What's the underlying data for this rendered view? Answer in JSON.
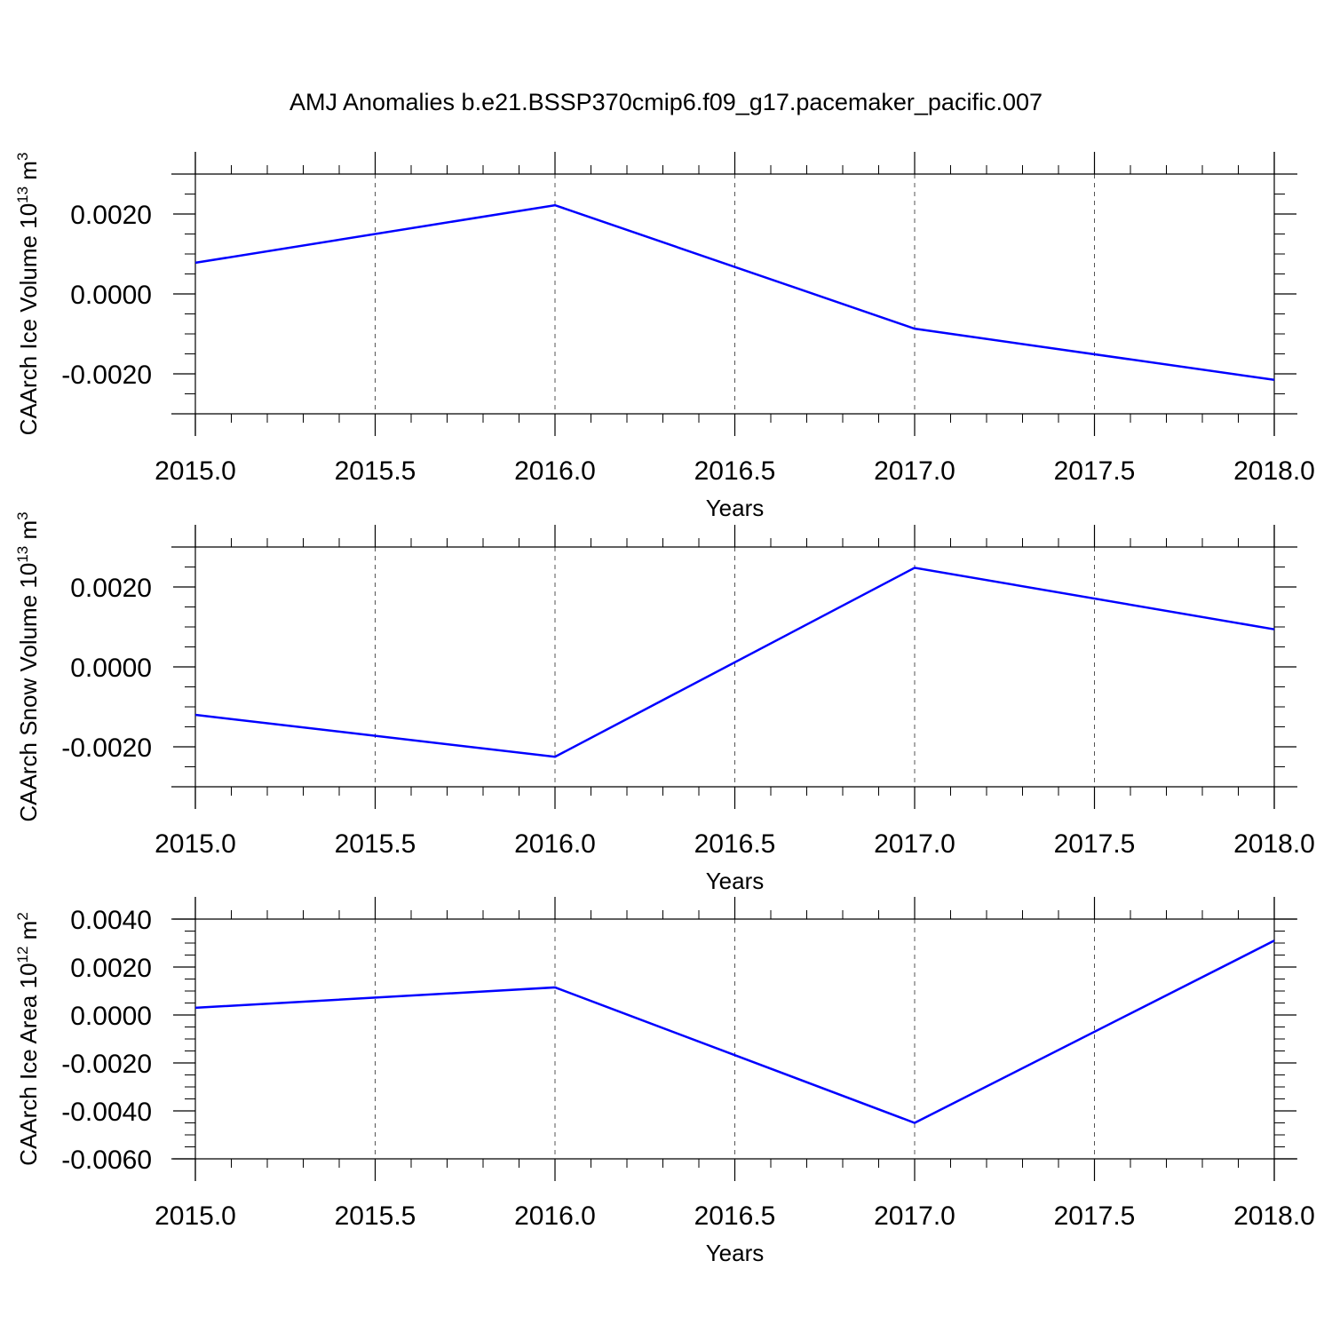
{
  "title": "AMJ Anomalies b.e21.BSSP370cmip6.f09_g17.pacemaker_pacific.007",
  "colors": {
    "line": "#0000ff",
    "axis": "#000000",
    "grid": "#555555",
    "background": "#ffffff"
  },
  "chart_data": [
    {
      "type": "line",
      "ylabel": {
        "text": "CAArch Ice Volume 10",
        "exp": "13",
        "unit": " m",
        "unit_exp": "3"
      },
      "xlabel": "Years",
      "x": [
        2015,
        2016,
        2017,
        2018
      ],
      "series": [
        {
          "values": [
            0.00078,
            0.00222,
            -0.00087,
            -0.00215
          ]
        }
      ],
      "xlim": [
        2015,
        2018
      ],
      "ylim": [
        -0.003,
        0.003
      ],
      "x_ticks": [
        "2015.0",
        "2015.5",
        "2016.0",
        "2016.5",
        "2017.0",
        "2017.5",
        "2018.0"
      ],
      "y_ticks": [
        {
          "value": 0.002,
          "label": "0.0020"
        },
        {
          "value": 0.0,
          "label": "0.0000"
        },
        {
          "value": -0.002,
          "label": "-0.0020"
        }
      ],
      "y_minor_step": 0.0005,
      "grid": "vertical dashed"
    },
    {
      "type": "line",
      "ylabel": {
        "text": "CAArch Snow Volume 10",
        "exp": "13",
        "unit": " m",
        "unit_exp": "3"
      },
      "xlabel": "Years",
      "x": [
        2015,
        2016,
        2017,
        2018
      ],
      "series": [
        {
          "values": [
            -0.0012,
            -0.00225,
            0.00248,
            0.00094
          ]
        }
      ],
      "xlim": [
        2015,
        2018
      ],
      "ylim": [
        -0.003,
        0.003
      ],
      "x_ticks": [
        "2015.0",
        "2015.5",
        "2016.0",
        "2016.5",
        "2017.0",
        "2017.5",
        "2018.0"
      ],
      "y_ticks": [
        {
          "value": 0.002,
          "label": "0.0020"
        },
        {
          "value": 0.0,
          "label": "0.0000"
        },
        {
          "value": -0.002,
          "label": "-0.0020"
        }
      ],
      "y_minor_step": 0.0005,
      "grid": "vertical dashed"
    },
    {
      "type": "line",
      "ylabel": {
        "text": "CAArch Ice Area 10",
        "exp": "12",
        "unit": " m",
        "unit_exp": "2"
      },
      "xlabel": "Years",
      "x": [
        2015,
        2016,
        2017,
        2018
      ],
      "series": [
        {
          "values": [
            0.0003,
            0.00115,
            -0.0045,
            0.0031
          ]
        }
      ],
      "xlim": [
        2015,
        2018
      ],
      "ylim": [
        -0.006,
        0.004
      ],
      "x_ticks": [
        "2015.0",
        "2015.5",
        "2016.0",
        "2016.5",
        "2017.0",
        "2017.5",
        "2018.0"
      ],
      "y_ticks": [
        {
          "value": 0.004,
          "label": "0.0040"
        },
        {
          "value": 0.002,
          "label": "0.0020"
        },
        {
          "value": 0.0,
          "label": "0.0000"
        },
        {
          "value": -0.002,
          "label": "-0.0020"
        },
        {
          "value": -0.004,
          "label": "-0.0040"
        },
        {
          "value": -0.006,
          "label": "-0.0060"
        }
      ],
      "y_minor_step": 0.0005,
      "grid": "vertical dashed"
    }
  ]
}
